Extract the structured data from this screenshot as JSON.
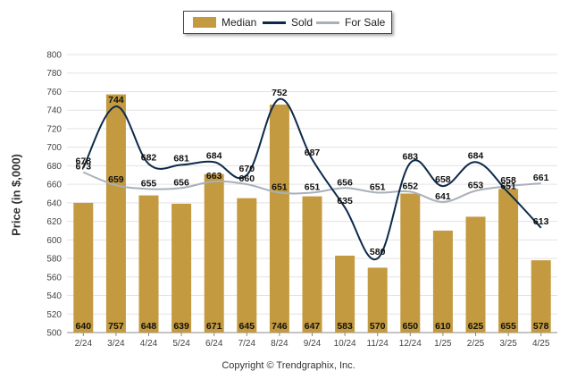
{
  "colors": {
    "median": "#c39a3f",
    "sold": "#0d2a4a",
    "forsale": "#a9b0ba",
    "grid": "#e3e3e3"
  },
  "legend": [
    {
      "label": "Median",
      "kind": "bar",
      "color": "#c39a3f"
    },
    {
      "label": "Sold",
      "kind": "line",
      "color": "#0d2a4a"
    },
    {
      "label": "For Sale",
      "kind": "line",
      "color": "#a9b0ba"
    }
  ],
  "copyright": "Copyright © Trendgraphix, Inc.",
  "chart_data": {
    "type": "bar",
    "title": "",
    "xlabel": "",
    "ylabel": "Price (in $,000)",
    "ylim": [
      500,
      800
    ],
    "yticks": [
      500,
      520,
      540,
      560,
      580,
      600,
      620,
      640,
      660,
      680,
      700,
      720,
      740,
      760,
      780,
      800
    ],
    "grid": true,
    "legend_position": "top-center",
    "categories": [
      "2/24",
      "3/24",
      "4/24",
      "5/24",
      "6/24",
      "7/24",
      "8/24",
      "9/24",
      "10/24",
      "11/24",
      "12/24",
      "1/25",
      "2/25",
      "3/25",
      "4/25"
    ],
    "series": [
      {
        "name": "Median",
        "kind": "bar",
        "values": [
          640,
          757,
          648,
          639,
          671,
          645,
          746,
          647,
          583,
          570,
          650,
          610,
          625,
          655,
          578
        ]
      },
      {
        "name": "Sold",
        "kind": "line",
        "values": [
          678,
          744,
          682,
          681,
          684,
          670,
          752,
          687,
          635,
          580,
          683,
          658,
          684,
          651,
          613
        ]
      },
      {
        "name": "For Sale",
        "kind": "line",
        "values": [
          673,
          659,
          655,
          656,
          663,
          660,
          651,
          651,
          656,
          651,
          652,
          641,
          653,
          658,
          661
        ]
      }
    ]
  }
}
